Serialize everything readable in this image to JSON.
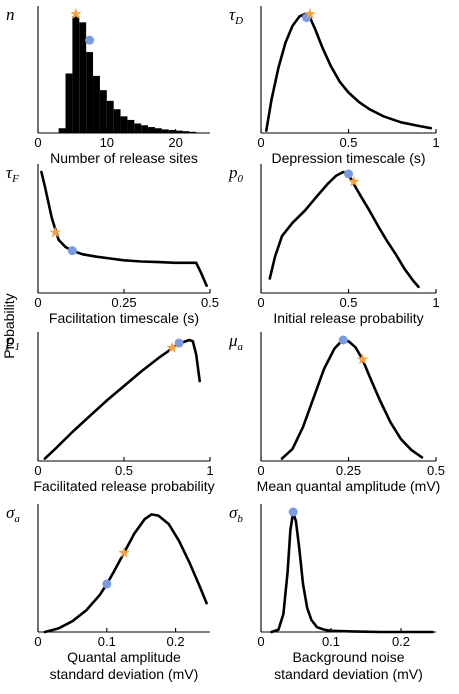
{
  "figure": {
    "ylabel": "Probability",
    "colors": {
      "line": "#000000",
      "hist": "#000000",
      "point_circle": "#7b9be0",
      "point_star": "#f5a23c"
    }
  },
  "chart_data": [
    {
      "type": "bar",
      "symbol": "n",
      "subscript": "",
      "xlabel": [
        "Number of release sites"
      ],
      "xlim": [
        0,
        25
      ],
      "ylim": [
        0,
        1
      ],
      "xticks": [
        0,
        10,
        20
      ],
      "xticklabels": [
        "0",
        "10",
        "20"
      ],
      "bin_width": 1,
      "bins": [
        3,
        4,
        5,
        6,
        7,
        8,
        9,
        10,
        11,
        12,
        13,
        14,
        15,
        16,
        17,
        18,
        19,
        20,
        21,
        22
      ],
      "values": [
        0.04,
        0.5,
        0.98,
        0.93,
        0.68,
        0.48,
        0.36,
        0.27,
        0.2,
        0.14,
        0.11,
        0.08,
        0.065,
        0.05,
        0.04,
        0.03,
        0.025,
        0.02,
        0.015,
        0.01
      ],
      "markers": {
        "circle": [
          7.5,
          0.78
        ],
        "star": [
          5.5,
          1.0
        ]
      }
    },
    {
      "type": "line",
      "symbol": "τ",
      "subscript": "D",
      "xlabel": [
        "Depression timescale (s)"
      ],
      "xlim": [
        0,
        1
      ],
      "ylim": [
        0,
        1
      ],
      "xticks": [
        0,
        0.5,
        1
      ],
      "xticklabels": [
        "0",
        "0.5",
        "1"
      ],
      "x": [
        0.03,
        0.06,
        0.1,
        0.14,
        0.18,
        0.22,
        0.25,
        0.28,
        0.31,
        0.35,
        0.4,
        0.45,
        0.5,
        0.56,
        0.62,
        0.7,
        0.8,
        0.9,
        0.97
      ],
      "y": [
        0.02,
        0.28,
        0.55,
        0.76,
        0.9,
        0.98,
        1.0,
        0.97,
        0.87,
        0.72,
        0.56,
        0.43,
        0.34,
        0.26,
        0.2,
        0.14,
        0.09,
        0.06,
        0.04
      ],
      "markers": {
        "circle": [
          0.26,
          0.97
        ],
        "star": [
          0.28,
          1.0
        ]
      }
    },
    {
      "type": "line",
      "symbol": "τ",
      "subscript": "F",
      "xlabel": [
        "Facilitation timescale (s)"
      ],
      "xlim": [
        0,
        0.5
      ],
      "ylim": [
        0,
        1
      ],
      "xticks": [
        0,
        0.25,
        0.5
      ],
      "xticklabels": [
        "0",
        "0.25",
        "0.5"
      ],
      "x": [
        0.01,
        0.02,
        0.04,
        0.06,
        0.08,
        0.1,
        0.13,
        0.17,
        0.21,
        0.25,
        0.3,
        0.35,
        0.4,
        0.43,
        0.46,
        0.475,
        0.49
      ],
      "y": [
        1.0,
        0.88,
        0.62,
        0.44,
        0.38,
        0.35,
        0.32,
        0.3,
        0.285,
        0.27,
        0.26,
        0.255,
        0.25,
        0.25,
        0.25,
        0.16,
        0.06
      ],
      "markers": {
        "circle": [
          0.1,
          0.35
        ],
        "star": [
          0.05,
          0.5
        ]
      }
    },
    {
      "type": "line",
      "symbol": "p",
      "subscript": "0",
      "xlabel": [
        "Initial release probability"
      ],
      "xlim": [
        0,
        1
      ],
      "ylim": [
        0,
        1
      ],
      "xticks": [
        0,
        0.5,
        1
      ],
      "xticklabels": [
        "0",
        "0.5",
        "1"
      ],
      "x": [
        0.05,
        0.08,
        0.12,
        0.18,
        0.25,
        0.32,
        0.38,
        0.43,
        0.47,
        0.5,
        0.53,
        0.57,
        0.62,
        0.67,
        0.72,
        0.77,
        0.82,
        0.87,
        0.9
      ],
      "y": [
        0.12,
        0.3,
        0.47,
        0.58,
        0.68,
        0.8,
        0.9,
        0.97,
        1.0,
        0.98,
        0.9,
        0.8,
        0.68,
        0.55,
        0.43,
        0.32,
        0.2,
        0.1,
        0.05
      ],
      "markers": {
        "circle": [
          0.5,
          0.985
        ],
        "star": [
          0.53,
          0.92
        ]
      }
    },
    {
      "type": "line",
      "symbol": "p",
      "subscript": "1",
      "xlabel": [
        "Facilitated release probability"
      ],
      "xlim": [
        0,
        1
      ],
      "ylim": [
        0,
        1
      ],
      "xticks": [
        0,
        0.5,
        1
      ],
      "xticklabels": [
        "0",
        "0.5",
        "1"
      ],
      "x": [
        0.04,
        0.1,
        0.2,
        0.3,
        0.4,
        0.5,
        0.6,
        0.7,
        0.77,
        0.8,
        0.84,
        0.88,
        0.9,
        0.92,
        0.94
      ],
      "y": [
        0.02,
        0.1,
        0.24,
        0.37,
        0.5,
        0.62,
        0.74,
        0.85,
        0.92,
        0.95,
        0.98,
        1.0,
        0.99,
        0.88,
        0.66
      ],
      "markers": {
        "circle": [
          0.82,
          0.975
        ],
        "star": [
          0.78,
          0.935
        ]
      }
    },
    {
      "type": "line",
      "symbol": "μ",
      "subscript": "a",
      "xlabel": [
        "Mean quantal amplitude (mV)"
      ],
      "xlim": [
        0,
        0.5
      ],
      "ylim": [
        0,
        1
      ],
      "xticks": [
        0,
        0.25,
        0.5
      ],
      "xticklabels": [
        "0",
        "0.25",
        "0.5"
      ],
      "x": [
        0.06,
        0.09,
        0.12,
        0.15,
        0.18,
        0.21,
        0.23,
        0.25,
        0.27,
        0.29,
        0.31,
        0.34,
        0.37,
        0.4,
        0.43,
        0.46
      ],
      "y": [
        0.02,
        0.1,
        0.28,
        0.52,
        0.76,
        0.93,
        0.99,
        0.99,
        0.94,
        0.84,
        0.7,
        0.5,
        0.32,
        0.18,
        0.09,
        0.03
      ],
      "markers": {
        "circle": [
          0.235,
          1.0
        ],
        "star": [
          0.29,
          0.84
        ]
      }
    },
    {
      "type": "line",
      "symbol": "σ",
      "subscript": "a",
      "xlabel": [
        "Quantal amplitude",
        "standard deviation (mV)"
      ],
      "xlim": [
        0,
        0.25
      ],
      "ylim": [
        0,
        1
      ],
      "xticks": [
        0,
        0.1,
        0.2
      ],
      "xticklabels": [
        "0",
        "0.1",
        "0.2"
      ],
      "x": [
        0.01,
        0.03,
        0.05,
        0.07,
        0.09,
        0.1,
        0.11,
        0.125,
        0.14,
        0.155,
        0.165,
        0.175,
        0.19,
        0.205,
        0.22,
        0.235,
        0.245
      ],
      "y": [
        0.0,
        0.03,
        0.09,
        0.18,
        0.31,
        0.4,
        0.5,
        0.66,
        0.82,
        0.94,
        0.98,
        0.97,
        0.9,
        0.76,
        0.58,
        0.38,
        0.24
      ],
      "markers": {
        "circle": [
          0.1,
          0.4
        ],
        "star": [
          0.125,
          0.66
        ]
      }
    },
    {
      "type": "line",
      "symbol": "σ",
      "subscript": "b",
      "xlabel": [
        "Background noise",
        "standard deviation (mV)"
      ],
      "xlim": [
        0,
        0.25
      ],
      "ylim": [
        0,
        1
      ],
      "xticks": [
        0,
        0.1,
        0.2
      ],
      "xticklabels": [
        "0",
        "0.1",
        "0.2"
      ],
      "x": [
        0.015,
        0.025,
        0.032,
        0.038,
        0.042,
        0.046,
        0.05,
        0.055,
        0.06,
        0.066,
        0.072,
        0.08,
        0.09,
        0.1,
        0.13,
        0.17,
        0.22,
        0.245
      ],
      "y": [
        0.0,
        0.02,
        0.15,
        0.5,
        0.85,
        1.0,
        0.92,
        0.68,
        0.4,
        0.2,
        0.1,
        0.04,
        0.02,
        0.01,
        0.005,
        0.0,
        0.0,
        0.0
      ],
      "markers": {
        "circle": [
          0.046,
          1.0
        ],
        "star": [
          0.046,
          1.0
        ]
      }
    }
  ]
}
